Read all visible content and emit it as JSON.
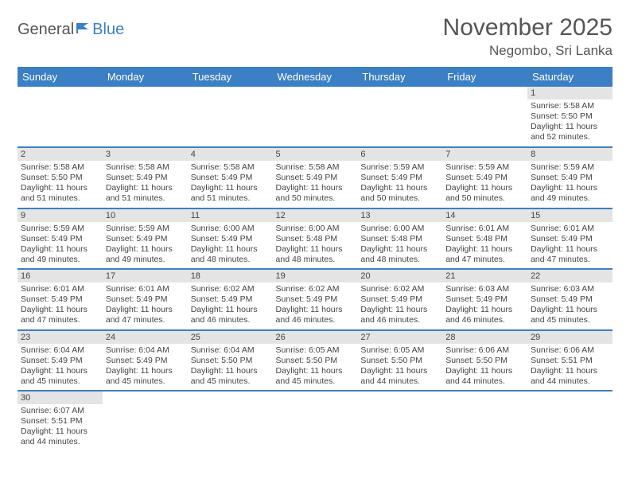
{
  "logo": {
    "text1": "General",
    "text2": "Blue"
  },
  "title": "November 2025",
  "location": "Negombo, Sri Lanka",
  "colors": {
    "header_bg": "#3b7fc4",
    "header_text": "#ffffff",
    "daynum_bg": "#e4e4e4",
    "row_divider": "#3b7fc4",
    "body_text": "#444444",
    "title_text": "#555555"
  },
  "columns": [
    "Sunday",
    "Monday",
    "Tuesday",
    "Wednesday",
    "Thursday",
    "Friday",
    "Saturday"
  ],
  "weeks": [
    [
      null,
      null,
      null,
      null,
      null,
      null,
      {
        "day": "1",
        "sunrise": "Sunrise: 5:58 AM",
        "sunset": "Sunset: 5:50 PM",
        "daylight": "Daylight: 11 hours and 52 minutes."
      }
    ],
    [
      {
        "day": "2",
        "sunrise": "Sunrise: 5:58 AM",
        "sunset": "Sunset: 5:50 PM",
        "daylight": "Daylight: 11 hours and 51 minutes."
      },
      {
        "day": "3",
        "sunrise": "Sunrise: 5:58 AM",
        "sunset": "Sunset: 5:49 PM",
        "daylight": "Daylight: 11 hours and 51 minutes."
      },
      {
        "day": "4",
        "sunrise": "Sunrise: 5:58 AM",
        "sunset": "Sunset: 5:49 PM",
        "daylight": "Daylight: 11 hours and 51 minutes."
      },
      {
        "day": "5",
        "sunrise": "Sunrise: 5:58 AM",
        "sunset": "Sunset: 5:49 PM",
        "daylight": "Daylight: 11 hours and 50 minutes."
      },
      {
        "day": "6",
        "sunrise": "Sunrise: 5:59 AM",
        "sunset": "Sunset: 5:49 PM",
        "daylight": "Daylight: 11 hours and 50 minutes."
      },
      {
        "day": "7",
        "sunrise": "Sunrise: 5:59 AM",
        "sunset": "Sunset: 5:49 PM",
        "daylight": "Daylight: 11 hours and 50 minutes."
      },
      {
        "day": "8",
        "sunrise": "Sunrise: 5:59 AM",
        "sunset": "Sunset: 5:49 PM",
        "daylight": "Daylight: 11 hours and 49 minutes."
      }
    ],
    [
      {
        "day": "9",
        "sunrise": "Sunrise: 5:59 AM",
        "sunset": "Sunset: 5:49 PM",
        "daylight": "Daylight: 11 hours and 49 minutes."
      },
      {
        "day": "10",
        "sunrise": "Sunrise: 5:59 AM",
        "sunset": "Sunset: 5:49 PM",
        "daylight": "Daylight: 11 hours and 49 minutes."
      },
      {
        "day": "11",
        "sunrise": "Sunrise: 6:00 AM",
        "sunset": "Sunset: 5:49 PM",
        "daylight": "Daylight: 11 hours and 48 minutes."
      },
      {
        "day": "12",
        "sunrise": "Sunrise: 6:00 AM",
        "sunset": "Sunset: 5:48 PM",
        "daylight": "Daylight: 11 hours and 48 minutes."
      },
      {
        "day": "13",
        "sunrise": "Sunrise: 6:00 AM",
        "sunset": "Sunset: 5:48 PM",
        "daylight": "Daylight: 11 hours and 48 minutes."
      },
      {
        "day": "14",
        "sunrise": "Sunrise: 6:01 AM",
        "sunset": "Sunset: 5:48 PM",
        "daylight": "Daylight: 11 hours and 47 minutes."
      },
      {
        "day": "15",
        "sunrise": "Sunrise: 6:01 AM",
        "sunset": "Sunset: 5:49 PM",
        "daylight": "Daylight: 11 hours and 47 minutes."
      }
    ],
    [
      {
        "day": "16",
        "sunrise": "Sunrise: 6:01 AM",
        "sunset": "Sunset: 5:49 PM",
        "daylight": "Daylight: 11 hours and 47 minutes."
      },
      {
        "day": "17",
        "sunrise": "Sunrise: 6:01 AM",
        "sunset": "Sunset: 5:49 PM",
        "daylight": "Daylight: 11 hours and 47 minutes."
      },
      {
        "day": "18",
        "sunrise": "Sunrise: 6:02 AM",
        "sunset": "Sunset: 5:49 PM",
        "daylight": "Daylight: 11 hours and 46 minutes."
      },
      {
        "day": "19",
        "sunrise": "Sunrise: 6:02 AM",
        "sunset": "Sunset: 5:49 PM",
        "daylight": "Daylight: 11 hours and 46 minutes."
      },
      {
        "day": "20",
        "sunrise": "Sunrise: 6:02 AM",
        "sunset": "Sunset: 5:49 PM",
        "daylight": "Daylight: 11 hours and 46 minutes."
      },
      {
        "day": "21",
        "sunrise": "Sunrise: 6:03 AM",
        "sunset": "Sunset: 5:49 PM",
        "daylight": "Daylight: 11 hours and 46 minutes."
      },
      {
        "day": "22",
        "sunrise": "Sunrise: 6:03 AM",
        "sunset": "Sunset: 5:49 PM",
        "daylight": "Daylight: 11 hours and 45 minutes."
      }
    ],
    [
      {
        "day": "23",
        "sunrise": "Sunrise: 6:04 AM",
        "sunset": "Sunset: 5:49 PM",
        "daylight": "Daylight: 11 hours and 45 minutes."
      },
      {
        "day": "24",
        "sunrise": "Sunrise: 6:04 AM",
        "sunset": "Sunset: 5:49 PM",
        "daylight": "Daylight: 11 hours and 45 minutes."
      },
      {
        "day": "25",
        "sunrise": "Sunrise: 6:04 AM",
        "sunset": "Sunset: 5:50 PM",
        "daylight": "Daylight: 11 hours and 45 minutes."
      },
      {
        "day": "26",
        "sunrise": "Sunrise: 6:05 AM",
        "sunset": "Sunset: 5:50 PM",
        "daylight": "Daylight: 11 hours and 45 minutes."
      },
      {
        "day": "27",
        "sunrise": "Sunrise: 6:05 AM",
        "sunset": "Sunset: 5:50 PM",
        "daylight": "Daylight: 11 hours and 44 minutes."
      },
      {
        "day": "28",
        "sunrise": "Sunrise: 6:06 AM",
        "sunset": "Sunset: 5:50 PM",
        "daylight": "Daylight: 11 hours and 44 minutes."
      },
      {
        "day": "29",
        "sunrise": "Sunrise: 6:06 AM",
        "sunset": "Sunset: 5:51 PM",
        "daylight": "Daylight: 11 hours and 44 minutes."
      }
    ],
    [
      {
        "day": "30",
        "sunrise": "Sunrise: 6:07 AM",
        "sunset": "Sunset: 5:51 PM",
        "daylight": "Daylight: 11 hours and 44 minutes."
      },
      null,
      null,
      null,
      null,
      null,
      null
    ]
  ]
}
